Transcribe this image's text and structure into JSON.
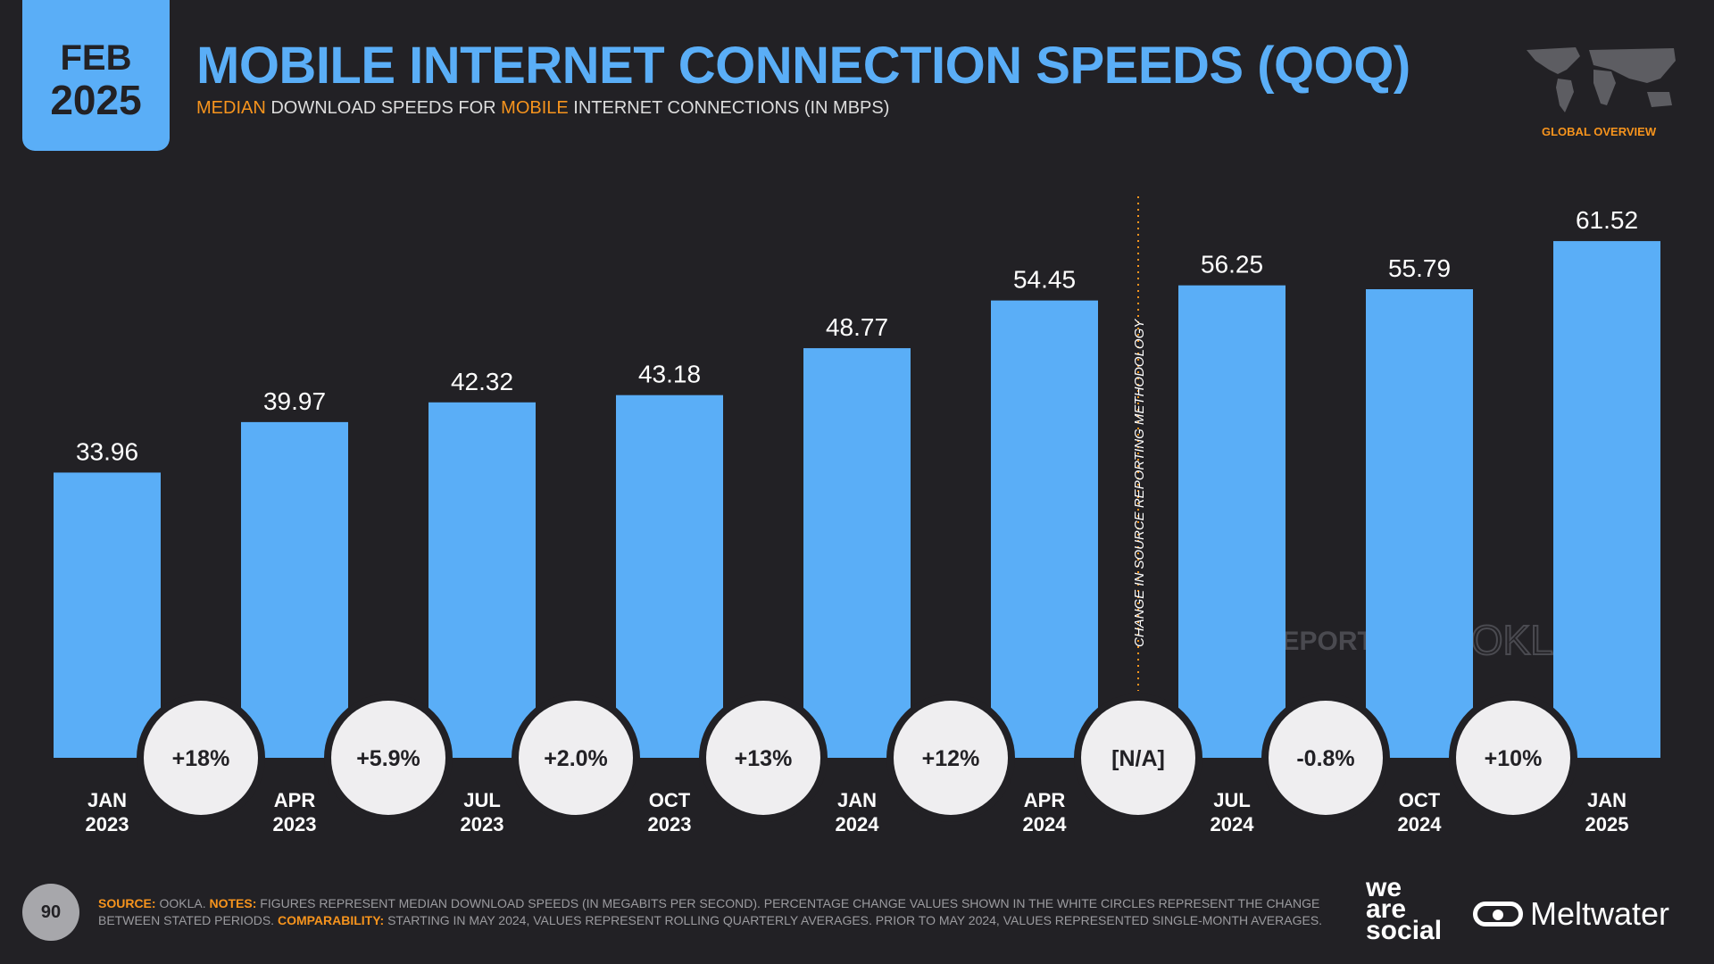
{
  "header": {
    "month": "FEB",
    "year": "2025",
    "title": "MOBILE INTERNET CONNECTION SPEEDS (QOQ)",
    "subtitle_parts": [
      "MEDIAN",
      " DOWNLOAD SPEEDS FOR ",
      "MOBILE",
      " INTERNET CONNECTIONS (IN MBPS)"
    ],
    "region_label": "GLOBAL OVERVIEW"
  },
  "chart_data": {
    "type": "bar",
    "title": "MOBILE INTERNET CONNECTION SPEEDS (QOQ)",
    "ylabel": "Mbps",
    "categories": [
      [
        "JAN",
        "2023"
      ],
      [
        "APR",
        "2023"
      ],
      [
        "JUL",
        "2023"
      ],
      [
        "OCT",
        "2023"
      ],
      [
        "JAN",
        "2024"
      ],
      [
        "APR",
        "2024"
      ],
      [
        "JUL",
        "2024"
      ],
      [
        "OCT",
        "2024"
      ],
      [
        "JAN",
        "2025"
      ]
    ],
    "values": [
      33.96,
      39.97,
      42.32,
      43.18,
      48.77,
      54.45,
      56.25,
      55.79,
      61.52
    ],
    "value_labels": [
      "33.96",
      "39.97",
      "42.32",
      "43.18",
      "48.77",
      "54.45",
      "56.25",
      "55.79",
      "61.52"
    ],
    "changes": [
      "+18%",
      "+5.9%",
      "+2.0%",
      "+13%",
      "+12%",
      "[N/A]",
      "-0.8%",
      "+10%"
    ],
    "annotation": "CHANGE IN SOURCE REPORTING METHODOLOGY",
    "bar_color": "#5aaef7",
    "ylim": [
      0,
      65
    ]
  },
  "watermarks": {
    "datareportal": "DATAREPORTAL",
    "ookla": "OOKLA"
  },
  "footer": {
    "page": "90",
    "source_label": "SOURCE:",
    "source": " OOKLA. ",
    "notes_label": "NOTES:",
    "notes": " FIGURES REPRESENT MEDIAN DOWNLOAD SPEEDS (IN MEGABITS PER SECOND). PERCENTAGE CHANGE VALUES SHOWN IN THE WHITE CIRCLES REPRESENT THE CHANGE BETWEEN STATED PERIODS. ",
    "comparability_label": "COMPARABILITY:",
    "comparability": " STARTING IN MAY 2024, VALUES REPRESENT ROLLING QUARTERLY AVERAGES. PRIOR TO MAY 2024, VALUES REPRESENTED SINGLE-MONTH AVERAGES."
  },
  "logos": {
    "was_lines": [
      "we",
      "are",
      "social"
    ],
    "meltwater": "Meltwater"
  }
}
